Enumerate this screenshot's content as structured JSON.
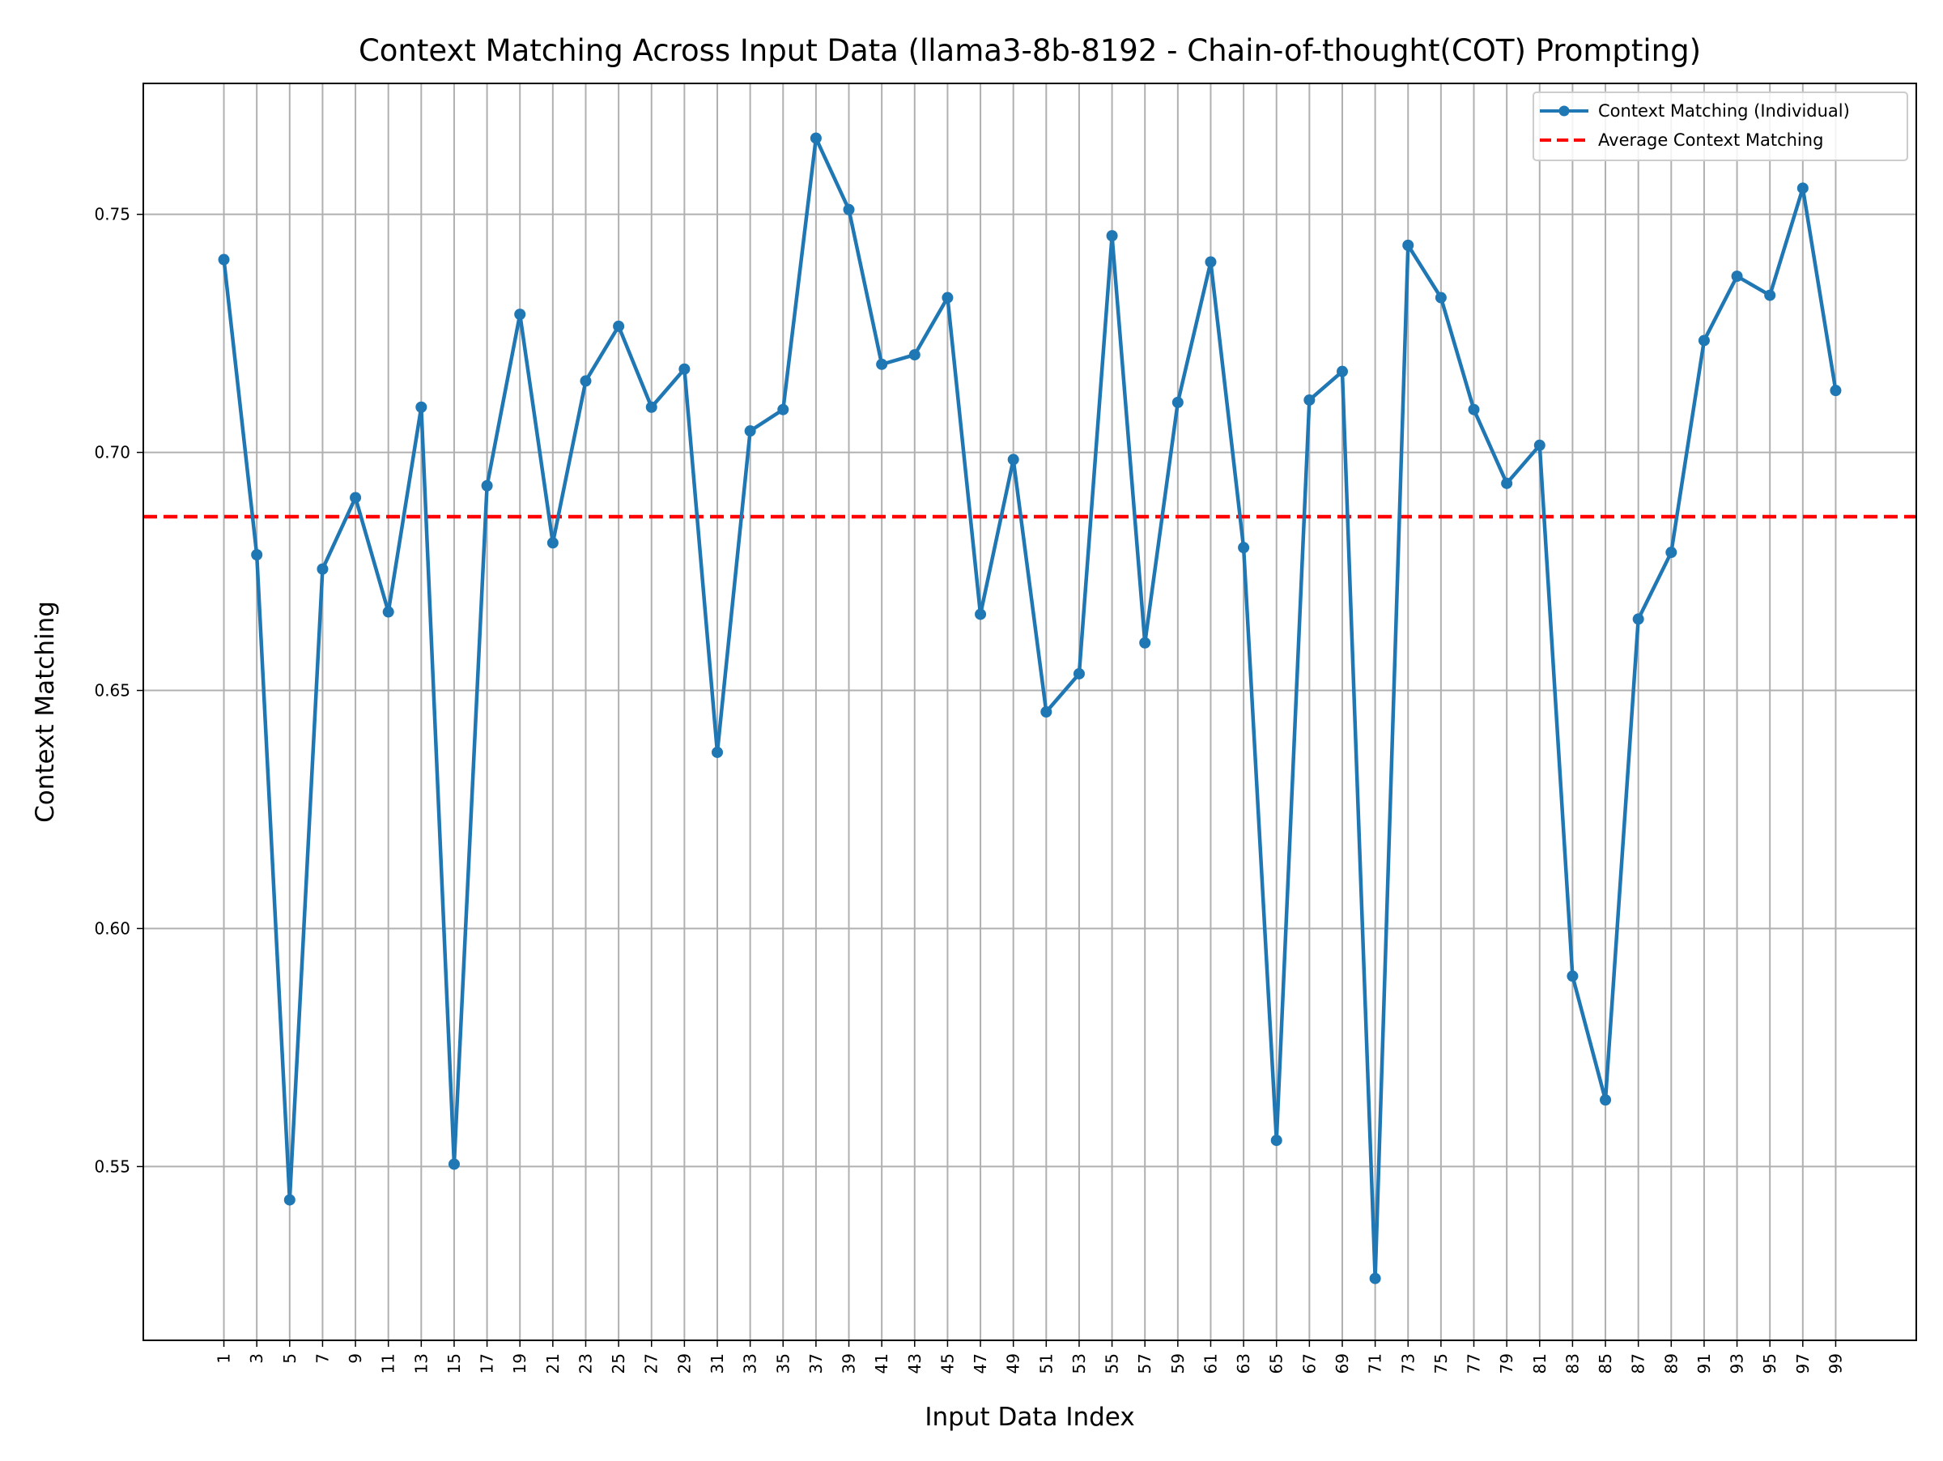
{
  "chart_data": {
    "type": "line",
    "title": "Context Matching Across Input Data (llama3-8b-8192 - Chain-of-thought(COT) Prompting)",
    "xlabel": "Input Data Index",
    "ylabel": "Context Matching",
    "x": [
      1,
      3,
      5,
      7,
      9,
      11,
      13,
      15,
      17,
      19,
      21,
      23,
      25,
      27,
      29,
      31,
      33,
      35,
      37,
      39,
      41,
      43,
      45,
      47,
      49,
      51,
      53,
      55,
      57,
      59,
      61,
      63,
      65,
      67,
      69,
      71,
      73,
      75,
      77,
      79,
      81,
      83,
      85,
      87,
      89,
      91,
      93,
      95,
      97,
      99
    ],
    "xticks": [
      "1",
      "3",
      "5",
      "7",
      "9",
      "11",
      "13",
      "15",
      "17",
      "19",
      "21",
      "23",
      "25",
      "27",
      "29",
      "31",
      "33",
      "35",
      "37",
      "39",
      "41",
      "43",
      "45",
      "47",
      "49",
      "51",
      "53",
      "55",
      "57",
      "59",
      "61",
      "63",
      "65",
      "67",
      "69",
      "71",
      "73",
      "75",
      "77",
      "79",
      "81",
      "83",
      "85",
      "87",
      "89",
      "91",
      "93",
      "95",
      "97",
      "99"
    ],
    "yticks": [
      "0.55",
      "0.60",
      "0.65",
      "0.70",
      "0.75"
    ],
    "ylim": [
      0.5135,
      0.7775
    ],
    "grid": true,
    "legend_position": "top-right",
    "series": [
      {
        "name": "Context Matching (Individual)",
        "color": "#1f77b4",
        "style": "solid line with circle markers",
        "values": [
          0.7405,
          0.6785,
          0.543,
          0.6755,
          0.6905,
          0.6665,
          0.7095,
          0.5505,
          0.693,
          0.729,
          0.681,
          0.715,
          0.7265,
          0.7095,
          0.7175,
          0.637,
          0.7045,
          0.709,
          0.766,
          0.751,
          0.7185,
          0.7205,
          0.7325,
          0.666,
          0.6985,
          0.6455,
          0.6535,
          0.7455,
          0.66,
          0.7105,
          0.74,
          0.68,
          0.5555,
          0.711,
          0.717,
          0.5265,
          0.7435,
          0.7325,
          0.709,
          0.6935,
          0.7015,
          0.59,
          0.564,
          0.665,
          0.679,
          0.7235,
          0.737,
          0.733,
          0.7555,
          0.713
        ]
      },
      {
        "name": "Average Context Matching",
        "color": "#ff0000",
        "style": "dashed",
        "value": 0.6865
      }
    ]
  }
}
